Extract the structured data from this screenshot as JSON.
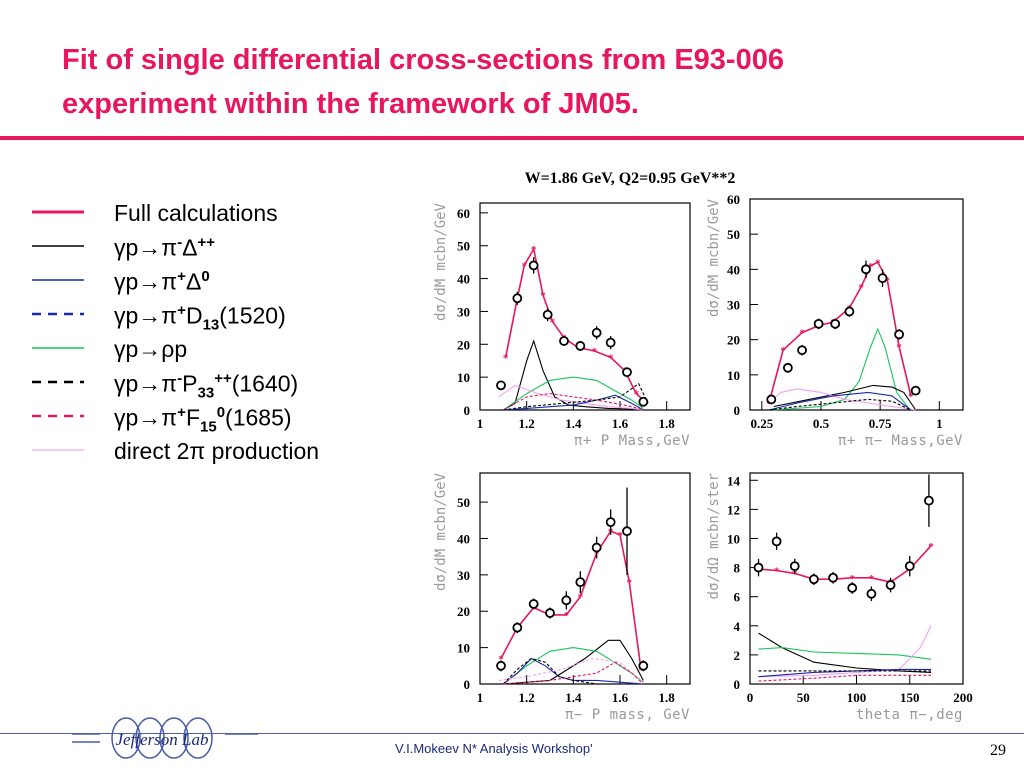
{
  "slide": {
    "title_line1": "Fit of  single differential cross-sections from E93-006",
    "title_line2": "experiment within the framework of  JM05.",
    "footer": "V.I.Mokeev  N* Analysis Workshop'",
    "page_number": "29",
    "logo_text": "Jefferson Lab",
    "colors": {
      "accent": "#e8175d",
      "footer_blue": "#1a2a7a"
    }
  },
  "legend": [
    {
      "label_parts": [
        "Full calculations"
      ],
      "color": "#e8175d",
      "style": "solid-thick"
    },
    {
      "label_parts": [
        "γp→π",
        "-",
        "Δ",
        "++"
      ],
      "color": "#000000",
      "style": "solid"
    },
    {
      "label_parts": [
        "γp→π",
        "+",
        "Δ",
        "0"
      ],
      "color": "#1a2aa8",
      "style": "solid"
    },
    {
      "label_parts": [
        "γp→π",
        "+",
        "D",
        "13",
        "(1520)"
      ],
      "color": "#1a2aa8",
      "style": "dashed"
    },
    {
      "label_parts": [
        "γp→ρp"
      ],
      "color": "#19c45a",
      "style": "solid"
    },
    {
      "label_parts": [
        "γp→π",
        "-",
        "P",
        "33",
        "++",
        "(1640)"
      ],
      "color": "#000000",
      "style": "dashed"
    },
    {
      "label_parts": [
        "γp→π",
        "+",
        "F",
        "15",
        "0",
        "(1685)"
      ],
      "color": "#e8175d",
      "style": "dashed"
    },
    {
      "label_parts": [
        "direct 2π production"
      ],
      "color": "#f2b8f2",
      "style": "solid"
    }
  ],
  "figure_title": "W=1.86 GeV, Q2=0.95 GeV**2",
  "chart_data": [
    {
      "type": "scatter",
      "xlabel": "π+ P Mass,GeV",
      "ylabel": "dσ/dM mcbn/GeV",
      "xlim": [
        1.0,
        1.9
      ],
      "ylim": [
        0,
        63
      ],
      "xticks": [
        1,
        1.2,
        1.4,
        1.6,
        1.8
      ],
      "xtick_labels": [
        "1",
        "1.2",
        "1.4",
        "1.6",
        "1.8"
      ],
      "yticks": [
        0,
        10,
        20,
        30,
        40,
        50,
        60
      ],
      "points": [
        [
          1.09,
          7.5
        ],
        [
          1.16,
          34
        ],
        [
          1.23,
          44
        ],
        [
          1.29,
          29
        ],
        [
          1.36,
          21
        ],
        [
          1.43,
          19.5
        ],
        [
          1.5,
          23.5
        ],
        [
          1.56,
          20.5
        ],
        [
          1.63,
          11.5
        ],
        [
          1.7,
          2.5
        ]
      ],
      "errors": [
        1,
        2,
        2.5,
        2,
        1.5,
        1.5,
        2,
        2,
        1.5,
        1
      ],
      "series": [
        {
          "name": "Full calculations",
          "color": "#e8175d",
          "x": [
            1.11,
            1.16,
            1.19,
            1.23,
            1.27,
            1.31,
            1.36,
            1.42,
            1.49,
            1.56,
            1.62,
            1.67,
            1.7
          ],
          "y": [
            16,
            34,
            44,
            49,
            35,
            27,
            22,
            19,
            18,
            16,
            12,
            5,
            3
          ]
        },
        {
          "color": "#000000",
          "x": [
            1.1,
            1.15,
            1.2,
            1.23,
            1.27,
            1.32,
            1.38,
            1.45,
            1.55,
            1.65,
            1.7
          ],
          "y": [
            0,
            2,
            15,
            21,
            12,
            4,
            1.5,
            1,
            0.5,
            0.3,
            0
          ]
        },
        {
          "color": "#19c45a",
          "x": [
            1.1,
            1.2,
            1.3,
            1.4,
            1.5,
            1.6,
            1.65,
            1.7
          ],
          "y": [
            0,
            5,
            9,
            10,
            9,
            5,
            3,
            0.5
          ]
        },
        {
          "color": "#f2a0f2",
          "x": [
            1.08,
            1.15,
            1.25,
            1.35,
            1.45,
            1.55,
            1.65,
            1.7
          ],
          "y": [
            4,
            7.5,
            5,
            3,
            2,
            1,
            0.5,
            0
          ]
        },
        {
          "color": "#1a2aa8",
          "x": [
            1.1,
            1.2,
            1.3,
            1.4,
            1.5,
            1.58,
            1.65,
            1.7
          ],
          "y": [
            0,
            0.5,
            1,
            1.5,
            3,
            4.5,
            2,
            0
          ]
        },
        {
          "color": "#e8175d",
          "x": [
            1.1,
            1.2,
            1.3,
            1.4,
            1.5,
            1.58,
            1.65,
            1.7
          ],
          "y": [
            0,
            4,
            5,
            4,
            3,
            2,
            1,
            0
          ]
        },
        {
          "color": "#000000",
          "x": [
            1.1,
            1.2,
            1.35,
            1.5,
            1.6,
            1.68,
            1.72
          ],
          "y": [
            0,
            1,
            2,
            3,
            4,
            8,
            2
          ]
        }
      ]
    },
    {
      "type": "scatter",
      "xlabel": "π+ π− Mass,GeV",
      "ylabel": "dσ/dM mcbn/GeV",
      "xlim": [
        0.2,
        1.1
      ],
      "ylim": [
        0,
        60
      ],
      "xticks": [
        0.25,
        0.5,
        0.75,
        1
      ],
      "xtick_labels": [
        "0.25",
        "0.5",
        "0.75",
        "1"
      ],
      "yticks": [
        0,
        10,
        20,
        30,
        40,
        50,
        60
      ],
      "points": [
        [
          0.29,
          3
        ],
        [
          0.36,
          12
        ],
        [
          0.42,
          17
        ],
        [
          0.49,
          24.5
        ],
        [
          0.56,
          24.5
        ],
        [
          0.62,
          28
        ],
        [
          0.69,
          40
        ],
        [
          0.76,
          37.5
        ],
        [
          0.83,
          21.5
        ],
        [
          0.9,
          5.5
        ]
      ],
      "errors": [
        1,
        1,
        1.5,
        1.5,
        1.5,
        1.5,
        2.5,
        2.5,
        1.5,
        1
      ],
      "series": [
        {
          "name": "Full calculations",
          "color": "#e8175d",
          "x": [
            0.28,
            0.34,
            0.42,
            0.49,
            0.55,
            0.62,
            0.67,
            0.71,
            0.74,
            0.78,
            0.83,
            0.88
          ],
          "y": [
            2,
            17,
            22,
            24,
            25,
            29,
            35,
            41,
            42,
            37,
            18,
            4
          ]
        },
        {
          "color": "#19c45a",
          "x": [
            0.3,
            0.5,
            0.6,
            0.66,
            0.71,
            0.74,
            0.77,
            0.82,
            0.87
          ],
          "y": [
            0,
            1,
            3,
            8,
            18,
            23,
            18,
            5,
            0.5
          ]
        },
        {
          "color": "#000000",
          "x": [
            0.3,
            0.45,
            0.6,
            0.72,
            0.8,
            0.85,
            0.9
          ],
          "y": [
            1,
            3,
            5,
            7,
            6.5,
            5,
            0
          ]
        },
        {
          "color": "#f2a0f2",
          "x": [
            0.28,
            0.33,
            0.4,
            0.5,
            0.6,
            0.7,
            0.8,
            0.9
          ],
          "y": [
            2,
            5,
            6,
            5,
            3,
            2,
            1,
            0
          ]
        },
        {
          "color": "#1a2aa8",
          "x": [
            0.28,
            0.4,
            0.55,
            0.7,
            0.8,
            0.88
          ],
          "y": [
            0,
            2,
            4,
            5,
            4,
            0
          ]
        },
        {
          "color": "#000000",
          "x": [
            0.28,
            0.4,
            0.55,
            0.7,
            0.8,
            0.88
          ],
          "y": [
            0,
            1,
            2,
            3,
            2.5,
            0
          ]
        }
      ]
    },
    {
      "type": "scatter",
      "xlabel": "π− P mass, GeV",
      "ylabel": "dσ/dM mcbn/GeV",
      "xlim": [
        1.0,
        1.9
      ],
      "ylim": [
        0,
        58
      ],
      "xticks": [
        1,
        1.2,
        1.4,
        1.6,
        1.8
      ],
      "xtick_labels": [
        "1",
        "1.2",
        "1.4",
        "1.6",
        "1.8"
      ],
      "yticks": [
        0,
        10,
        20,
        30,
        40,
        50
      ],
      "points": [
        [
          1.09,
          5
        ],
        [
          1.16,
          15.5
        ],
        [
          1.23,
          22
        ],
        [
          1.3,
          19.5
        ],
        [
          1.37,
          23
        ],
        [
          1.43,
          28
        ],
        [
          1.5,
          37.5
        ],
        [
          1.56,
          44.5
        ],
        [
          1.63,
          42
        ],
        [
          1.7,
          5
        ]
      ],
      "errors": [
        1.5,
        1.5,
        1.5,
        1.5,
        2.5,
        3,
        3,
        3.5,
        12,
        1.5
      ],
      "series": [
        {
          "name": "Full calculations",
          "color": "#e8175d",
          "x": [
            1.09,
            1.16,
            1.23,
            1.3,
            1.37,
            1.43,
            1.5,
            1.56,
            1.6,
            1.64,
            1.69
          ],
          "y": [
            7,
            15.5,
            21,
            19,
            19,
            24,
            36,
            42,
            41,
            28,
            4
          ]
        },
        {
          "color": "#000000",
          "x": [
            1.1,
            1.3,
            1.45,
            1.55,
            1.6,
            1.65,
            1.7
          ],
          "y": [
            0,
            1,
            7,
            12,
            12,
            7,
            1
          ]
        },
        {
          "color": "#19c45a",
          "x": [
            1.1,
            1.2,
            1.3,
            1.4,
            1.5,
            1.6,
            1.65,
            1.7
          ],
          "y": [
            0,
            5,
            9,
            10,
            9,
            5,
            3,
            0.5
          ]
        },
        {
          "color": "#1a2aa8",
          "x": [
            1.1,
            1.16,
            1.22,
            1.28,
            1.34,
            1.4,
            1.5,
            1.6,
            1.7
          ],
          "y": [
            0,
            3,
            7,
            5,
            2,
            1,
            1,
            0.5,
            0
          ]
        },
        {
          "color": "#000000",
          "x": [
            1.1,
            1.16,
            1.22,
            1.28,
            1.34,
            1.4,
            1.5
          ],
          "y": [
            0,
            4,
            7,
            6,
            2,
            1,
            0
          ]
        },
        {
          "color": "#f2a0f2",
          "x": [
            1.08,
            1.2,
            1.35,
            1.48,
            1.6,
            1.65,
            1.7
          ],
          "y": [
            1,
            2,
            4,
            7,
            6,
            3,
            0.5
          ]
        },
        {
          "color": "#e8175d",
          "x": [
            1.1,
            1.3,
            1.5,
            1.58,
            1.65,
            1.7
          ],
          "y": [
            0,
            1,
            3,
            6,
            3,
            0
          ]
        }
      ]
    },
    {
      "type": "scatter",
      "xlabel": "theta π−,deg",
      "ylabel": "dσ/dΩ mcbn/ster",
      "xlim": [
        0,
        200
      ],
      "ylim": [
        0,
        14.5
      ],
      "xticks": [
        0,
        50,
        100,
        150,
        200
      ],
      "xtick_labels": [
        "0",
        "50",
        "100",
        "150",
        "200"
      ],
      "yticks": [
        0,
        2,
        4,
        6,
        8,
        10,
        12,
        14
      ],
      "points": [
        [
          8,
          8
        ],
        [
          25,
          9.8
        ],
        [
          42,
          8.1
        ],
        [
          60,
          7.2
        ],
        [
          78,
          7.3
        ],
        [
          96,
          6.6
        ],
        [
          114,
          6.2
        ],
        [
          132,
          6.8
        ],
        [
          150,
          8.1
        ],
        [
          168,
          12.6
        ]
      ],
      "errors": [
        0.6,
        0.6,
        0.5,
        0.4,
        0.4,
        0.4,
        0.5,
        0.5,
        0.7,
        1.8
      ],
      "series": [
        {
          "name": "Full calculations",
          "color": "#e8175d",
          "x": [
            8,
            25,
            42,
            60,
            78,
            96,
            114,
            132,
            150,
            170
          ],
          "y": [
            7.9,
            7.8,
            7.6,
            7.2,
            7.2,
            7.3,
            7.3,
            7.0,
            7.9,
            9.5
          ]
        },
        {
          "color": "#000000",
          "x": [
            8,
            30,
            60,
            100,
            140,
            170
          ],
          "y": [
            3.5,
            2.5,
            1.5,
            1.1,
            0.9,
            0.8
          ]
        },
        {
          "color": "#19c45a",
          "x": [
            8,
            30,
            60,
            100,
            140,
            170
          ],
          "y": [
            2.4,
            2.5,
            2.2,
            2.1,
            2,
            1.7
          ]
        },
        {
          "color": "#f2a0f2",
          "x": [
            8,
            60,
            100,
            140,
            160,
            170
          ],
          "y": [
            0.5,
            0.6,
            0.8,
            1,
            2.5,
            4
          ]
        },
        {
          "color": "#1a2aa8",
          "x": [
            8,
            60,
            100,
            140,
            170
          ],
          "y": [
            0.5,
            0.8,
            0.9,
            1,
            1
          ]
        },
        {
          "color": "#000000",
          "x": [
            8,
            60,
            100,
            140,
            170
          ],
          "y": [
            0.9,
            0.9,
            0.9,
            0.9,
            0.9
          ]
        },
        {
          "color": "#e8175d",
          "x": [
            8,
            60,
            100,
            140,
            170
          ],
          "y": [
            0.2,
            0.4,
            0.6,
            0.6,
            0.6
          ]
        }
      ]
    }
  ]
}
